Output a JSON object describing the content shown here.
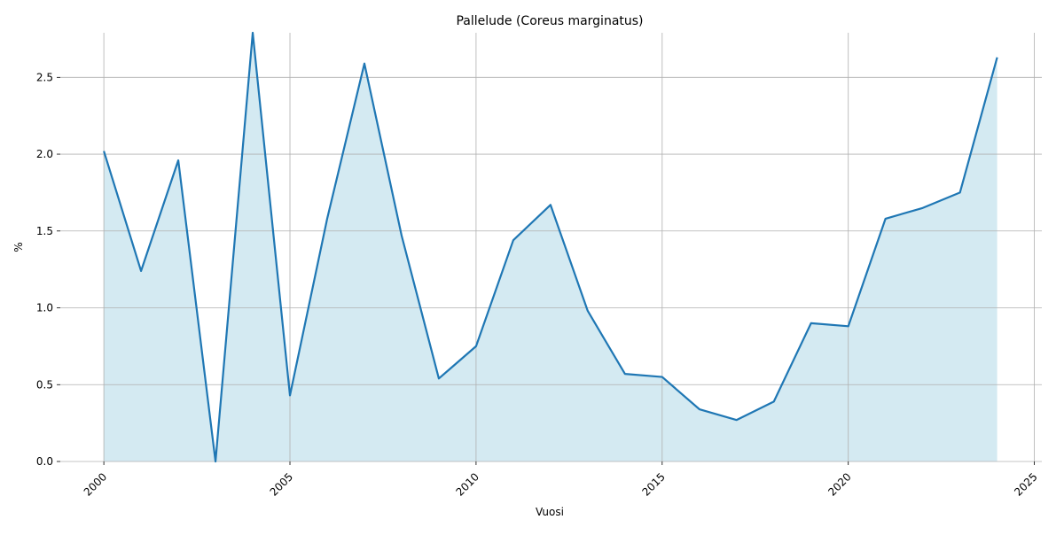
{
  "chart_data": {
    "type": "area_line",
    "title": "Pallelude (Coreus marginatus)",
    "x_label": "Vuosi",
    "y_label": "%",
    "x": [
      2000,
      2001,
      2002,
      2003,
      2004,
      2005,
      2006,
      2007,
      2008,
      2009,
      2010,
      2011,
      2012,
      2013,
      2014,
      2015,
      2016,
      2017,
      2018,
      2019,
      2020,
      2021,
      2022,
      2023,
      2024
    ],
    "values": [
      2.02,
      1.24,
      1.96,
      0,
      2.79,
      0.43,
      1.58,
      2.59,
      1.47,
      0.54,
      0.75,
      1.44,
      1.67,
      0.98,
      0.57,
      0.55,
      0.34,
      0.27,
      0.39,
      0.9,
      0.88,
      1.58,
      1.65,
      1.75,
      2.63
    ],
    "color": "#1f77b4",
    "fill_color": "#d4eaf2",
    "xlim": [
      1998.83,
      2025.2
    ],
    "xticks": [
      2000,
      2005,
      2010,
      2015,
      2020,
      2025
    ],
    "ylim": [
      0,
      2.79
    ],
    "yticks": [
      {
        "value": 0,
        "label": "0.0"
      },
      0.5,
      {
        "value": 1,
        "label": "1.0"
      },
      1.5,
      {
        "value": 2,
        "label": "2.0"
      },
      2.5
    ],
    "grid": true
  }
}
